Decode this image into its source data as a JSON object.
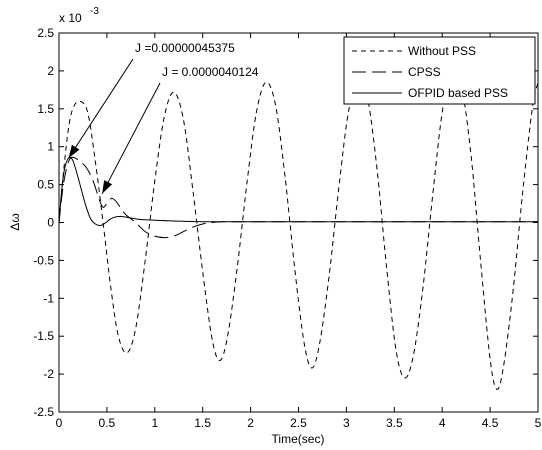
{
  "chart_data": {
    "type": "line",
    "title": "",
    "xlabel": "Time(sec)",
    "ylabel": "Δω",
    "y_multiplier_base": "x 10",
    "y_multiplier_exponent": "-3",
    "xlim": [
      0,
      5
    ],
    "ylim": [
      -2.5,
      2.5
    ],
    "xticks": [
      0,
      0.5,
      1,
      1.5,
      2,
      2.5,
      3,
      3.5,
      4,
      4.5,
      5
    ],
    "xtick_labels": [
      "0",
      "0.5",
      "1",
      "1.5",
      "2",
      "2.5",
      "3",
      "3.5",
      "4",
      "4.5",
      "5"
    ],
    "yticks": [
      -2.5,
      -2,
      -1.5,
      -1,
      -0.5,
      0,
      0.5,
      1,
      1.5,
      2,
      2.5
    ],
    "ytick_labels": [
      "-2.5",
      "-2",
      "-1.5",
      "-1",
      "-0.5",
      "0",
      "0.5",
      "1",
      "1.5",
      "2",
      "2.5"
    ],
    "grid": false,
    "legend_position": "top-right",
    "series": [
      {
        "name": "Without PSS",
        "style": "dashed",
        "color": "#000000",
        "x": [
          0,
          0.05,
          0.1,
          0.15,
          0.22,
          0.3,
          0.38,
          0.46,
          0.54,
          0.62,
          0.71,
          0.8,
          0.9,
          1.0,
          1.1,
          1.2,
          1.3,
          1.4,
          1.5,
          1.6,
          1.68,
          1.76,
          1.86,
          1.96,
          2.06,
          2.16,
          2.26,
          2.36,
          2.46,
          2.56,
          2.64,
          2.72,
          2.82,
          2.92,
          3.02,
          3.12,
          3.22,
          3.32,
          3.42,
          3.52,
          3.61,
          3.7,
          3.8,
          3.9,
          4.0,
          4.1,
          4.2,
          4.3,
          4.4,
          4.5,
          4.57,
          4.64,
          4.74,
          4.84,
          4.94,
          5.0
        ],
        "y": [
          0,
          0.7,
          1.25,
          1.52,
          1.6,
          1.45,
          0.8,
          0.0,
          -0.85,
          -1.5,
          -1.72,
          -1.4,
          -0.5,
          0.55,
          1.4,
          1.72,
          1.35,
          0.4,
          -0.65,
          -1.55,
          -1.82,
          -1.5,
          -0.6,
          0.5,
          1.45,
          1.85,
          1.55,
          0.6,
          -0.6,
          -1.6,
          -1.92,
          -1.6,
          -0.7,
          0.45,
          1.45,
          1.9,
          1.65,
          0.7,
          -0.6,
          -1.7,
          -2.05,
          -1.75,
          -0.85,
          0.35,
          1.45,
          2.0,
          1.8,
          0.9,
          -0.5,
          -1.8,
          -2.2,
          -1.9,
          -0.9,
          0.4,
          1.5,
          1.85
        ]
      },
      {
        "name": "CPSS",
        "style": "dash-long",
        "color": "#000000",
        "x": [
          0,
          0.04,
          0.08,
          0.12,
          0.17,
          0.22,
          0.27,
          0.32,
          0.37,
          0.42,
          0.46,
          0.5,
          0.55,
          0.6,
          0.65,
          0.7,
          0.8,
          0.9,
          1.0,
          1.1,
          1.2,
          1.3,
          1.4,
          1.5,
          1.6,
          1.7,
          1.8,
          2.0,
          2.5,
          3.0,
          3.5,
          4.0,
          4.5,
          5.0
        ],
        "y": [
          0,
          0.45,
          0.72,
          0.85,
          0.85,
          0.8,
          0.75,
          0.65,
          0.5,
          0.3,
          0.2,
          0.25,
          0.32,
          0.27,
          0.18,
          0.1,
          0.0,
          -0.12,
          -0.18,
          -0.2,
          -0.18,
          -0.12,
          -0.06,
          -0.02,
          0.0,
          0.01,
          0.01,
          0.01,
          0.01,
          0.01,
          0.01,
          0.01,
          0.01,
          0.01
        ]
      },
      {
        "name": "OFPID based PSS",
        "style": "solid",
        "color": "#000000",
        "x": [
          0,
          0.03,
          0.06,
          0.1,
          0.14,
          0.18,
          0.23,
          0.28,
          0.33,
          0.38,
          0.43,
          0.48,
          0.53,
          0.58,
          0.65,
          0.75,
          0.85,
          1.0,
          1.2,
          1.5,
          2.0,
          3.0,
          4.0,
          5.0
        ],
        "y": [
          0,
          0.45,
          0.72,
          0.85,
          0.83,
          0.68,
          0.45,
          0.22,
          0.05,
          -0.02,
          -0.04,
          -0.01,
          0.04,
          0.07,
          0.08,
          0.06,
          0.04,
          0.03,
          0.02,
          0.01,
          0.01,
          0.01,
          0.01,
          0.01
        ]
      }
    ],
    "annotations": [
      {
        "text": "J =0.00000045375",
        "target_x": 0.1,
        "target_y": 0.85
      },
      {
        "text": "J = 0.0000040124",
        "target_x": 0.45,
        "target_y": 0.38
      }
    ]
  }
}
